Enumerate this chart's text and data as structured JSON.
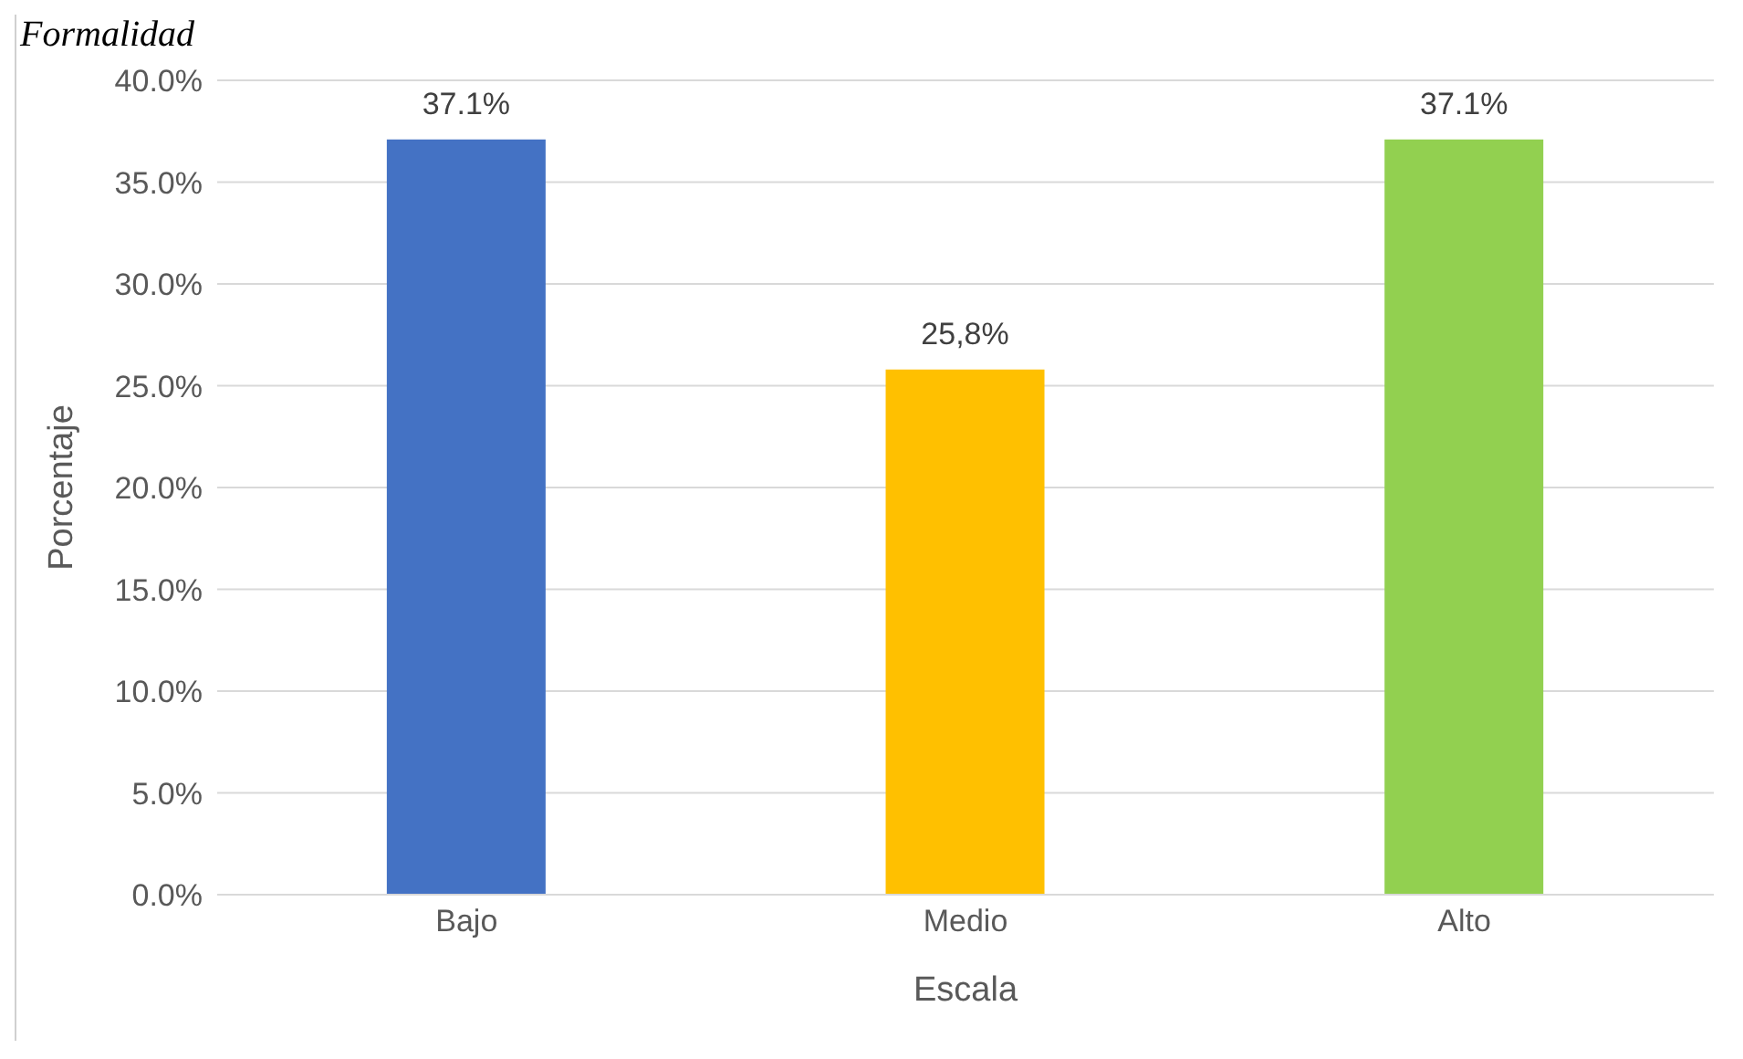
{
  "chart_data": {
    "type": "bar",
    "title": "Formalidad",
    "xlabel": "Escala",
    "ylabel": "Porcentaje",
    "categories": [
      "Bajo",
      "Medio",
      "Alto"
    ],
    "values": [
      37.1,
      25.8,
      37.1
    ],
    "colors": [
      "#4472c4",
      "#ffc000",
      "#92d050"
    ],
    "value_labels": [
      "37.1%",
      "25,8%",
      "37.1%"
    ],
    "ylim": [
      0,
      40
    ],
    "yticks": [
      {
        "value": 0,
        "label": "0.0%"
      },
      {
        "value": 5,
        "label": "5.0%"
      },
      {
        "value": 10,
        "label": "10.0%"
      },
      {
        "value": 15,
        "label": "15.0%"
      },
      {
        "value": 20,
        "label": "20.0%"
      },
      {
        "value": 25,
        "label": "25.0%"
      },
      {
        "value": 30,
        "label": "30.0%"
      },
      {
        "value": 35,
        "label": "35.0%"
      },
      {
        "value": 40,
        "label": "40.0%"
      }
    ],
    "grid": "y",
    "legend": false
  }
}
